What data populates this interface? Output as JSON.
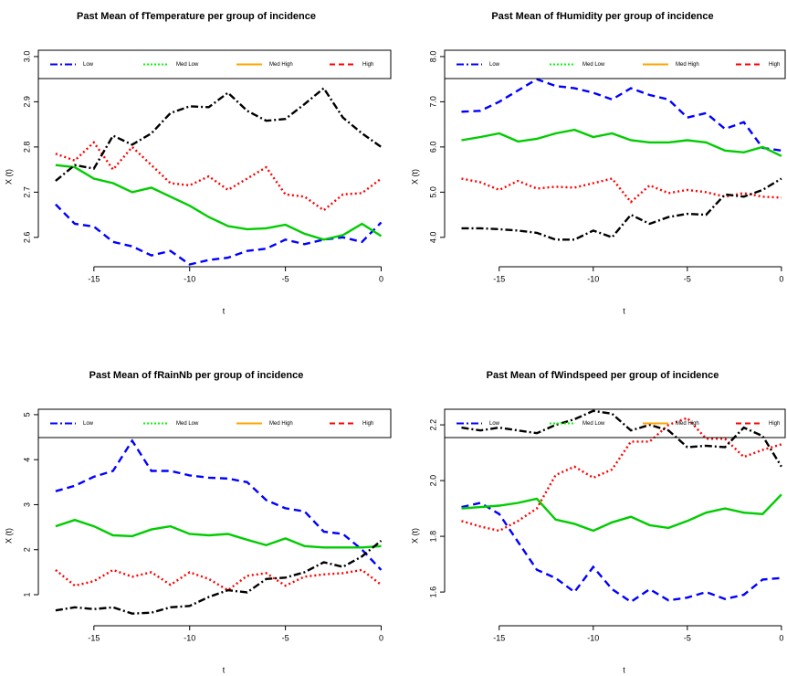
{
  "chart_data": [
    {
      "type": "line",
      "title": "Past Mean of fTemperature per group of incidence",
      "xlabel": "t",
      "ylabel": "X (t)",
      "x": [
        -17,
        -16,
        -15,
        -14,
        -13,
        -12,
        -11,
        -10,
        -9,
        -8,
        -7,
        -6,
        -5,
        -4,
        -3,
        -2,
        -1,
        0
      ],
      "xlim": [
        -17.9,
        0.5
      ],
      "ylim": [
        2.535,
        3.014
      ],
      "xticks": [
        -15,
        -10,
        -5,
        0
      ],
      "yticks": [
        2.6,
        2.7,
        2.8,
        2.9,
        {
          "value": 3,
          "label": "3.0"
        }
      ],
      "series": [
        {
          "name": "Low",
          "color": "#0000ff",
          "dash": "8,5",
          "legend_color": "#0000ff",
          "legend_dash": "8,3,2,3",
          "values": [
            2.673,
            2.63,
            2.624,
            2.59,
            2.58,
            2.56,
            2.57,
            2.54,
            2.55,
            2.555,
            2.57,
            2.575,
            2.595,
            2.585,
            2.595,
            2.6,
            2.59,
            2.633
          ]
        },
        {
          "name": "Med Low",
          "color": "#00cc00",
          "dash": "none",
          "legend_color": "#00ff00",
          "legend_dash": "2,2",
          "values": [
            2.76,
            2.755,
            2.73,
            2.72,
            2.7,
            2.71,
            2.69,
            2.67,
            2.645,
            2.625,
            2.618,
            2.62,
            2.628,
            2.608,
            2.595,
            2.605,
            2.63,
            2.603
          ]
        },
        {
          "name": "Med High",
          "color": "#ff0000",
          "dash": "2,3",
          "legend_color": "#ffa500",
          "legend_dash": "none",
          "values": [
            2.785,
            2.77,
            2.81,
            2.75,
            2.8,
            2.76,
            2.72,
            2.715,
            2.735,
            2.705,
            2.73,
            2.755,
            2.695,
            2.69,
            2.66,
            2.695,
            2.698,
            2.73
          ]
        },
        {
          "name": "High",
          "color": "#000000",
          "dash": "8,3,2,3",
          "legend_color": "#ff0000",
          "legend_dash": "6,4",
          "values": [
            2.725,
            2.76,
            2.752,
            2.825,
            2.805,
            2.83,
            2.875,
            2.89,
            2.888,
            2.92,
            2.88,
            2.858,
            2.862,
            2.895,
            2.93,
            2.865,
            2.83,
            2.8
          ]
        }
      ]
    },
    {
      "type": "line",
      "title": "Past Mean of fHumidity per group of incidence",
      "xlabel": "t",
      "ylabel": "X (t)",
      "x": [
        -17,
        -16,
        -15,
        -14,
        -13,
        -12,
        -11,
        -10,
        -9,
        -8,
        -7,
        -6,
        -5,
        -4,
        -3,
        -2,
        -1,
        0
      ],
      "xlim": [
        -17.9,
        0.2
      ],
      "ylim": [
        3.35,
        8.14
      ],
      "xticks": [
        -15,
        -10,
        -5,
        0
      ],
      "yticks": [
        {
          "value": 4,
          "label": "4.0"
        },
        {
          "value": 5,
          "label": "5.0"
        },
        {
          "value": 6,
          "label": "6.0"
        },
        {
          "value": 7,
          "label": "7.0"
        },
        {
          "value": 8,
          "label": "8.0"
        }
      ],
      "series": [
        {
          "name": "Low",
          "color": "#0000ff",
          "dash": "8,5",
          "legend_color": "#0000ff",
          "legend_dash": "8,3,2,3",
          "values": [
            6.78,
            6.8,
            7.0,
            7.25,
            7.5,
            7.35,
            7.3,
            7.2,
            7.05,
            7.3,
            7.15,
            7.05,
            6.65,
            6.75,
            6.4,
            6.55,
            5.98,
            5.92
          ]
        },
        {
          "name": "Med Low",
          "color": "#00cc00",
          "dash": "none",
          "legend_color": "#00ff00",
          "legend_dash": "2,2",
          "values": [
            6.15,
            6.22,
            6.3,
            6.12,
            6.18,
            6.3,
            6.38,
            6.22,
            6.3,
            6.15,
            6.1,
            6.1,
            6.15,
            6.1,
            5.92,
            5.88,
            6.0,
            5.8
          ]
        },
        {
          "name": "Med High",
          "color": "#ff0000",
          "dash": "2,3",
          "legend_color": "#ffa500",
          "legend_dash": "none",
          "values": [
            5.3,
            5.22,
            5.05,
            5.25,
            5.08,
            5.12,
            5.1,
            5.2,
            5.3,
            4.78,
            5.15,
            4.98,
            5.05,
            5.0,
            4.9,
            4.98,
            4.9,
            4.88
          ]
        },
        {
          "name": "High",
          "color": "#000000",
          "dash": "8,3,2,3",
          "legend_color": "#ff0000",
          "legend_dash": "6,4",
          "values": [
            4.2,
            4.2,
            4.18,
            4.15,
            4.1,
            3.95,
            3.95,
            4.15,
            4.0,
            4.5,
            4.3,
            4.45,
            4.52,
            4.5,
            4.95,
            4.9,
            5.05,
            5.3
          ]
        }
      ]
    },
    {
      "type": "line",
      "title": "Past Mean of fRainNb per group of incidence",
      "xlabel": "t",
      "ylabel": "X (t)",
      "x": [
        -17,
        -16,
        -15,
        -14,
        -13,
        -12,
        -11,
        -10,
        -9,
        -8,
        -7,
        -6,
        -5,
        -4,
        -3,
        -2,
        -1,
        0
      ],
      "xlim": [
        -17.9,
        0.5
      ],
      "ylim": [
        0.31,
        5.12
      ],
      "xticks": [
        -15,
        -10,
        -5,
        0
      ],
      "yticks": [
        1,
        2,
        3,
        4,
        5
      ],
      "series": [
        {
          "name": "Low",
          "color": "#0000ff",
          "dash": "8,5",
          "legend_color": "#0000ff",
          "legend_dash": "8,3,2,3",
          "values": [
            3.3,
            3.42,
            3.62,
            3.75,
            4.42,
            3.75,
            3.75,
            3.65,
            3.6,
            3.58,
            3.5,
            3.1,
            2.92,
            2.85,
            2.4,
            2.35,
            2.0,
            1.55
          ]
        },
        {
          "name": "Med Low",
          "color": "#00cc00",
          "dash": "none",
          "legend_color": "#00ff00",
          "legend_dash": "2,2",
          "values": [
            2.52,
            2.66,
            2.52,
            2.32,
            2.3,
            2.45,
            2.52,
            2.35,
            2.32,
            2.35,
            2.22,
            2.1,
            2.25,
            2.08,
            2.05,
            2.05,
            2.05,
            2.08
          ]
        },
        {
          "name": "Med High",
          "color": "#ff0000",
          "dash": "2,3",
          "legend_color": "#ffa500",
          "legend_dash": "none",
          "values": [
            1.55,
            1.2,
            1.3,
            1.55,
            1.4,
            1.5,
            1.22,
            1.5,
            1.35,
            1.1,
            1.42,
            1.48,
            1.2,
            1.4,
            1.45,
            1.48,
            1.55,
            1.22
          ]
        },
        {
          "name": "High",
          "color": "#000000",
          "dash": "8,3,2,3",
          "legend_color": "#ff0000",
          "legend_dash": "6,4",
          "values": [
            0.65,
            0.72,
            0.68,
            0.72,
            0.58,
            0.6,
            0.72,
            0.75,
            0.95,
            1.1,
            1.05,
            1.35,
            1.38,
            1.5,
            1.72,
            1.62,
            1.85,
            2.2
          ]
        }
      ]
    },
    {
      "type": "line",
      "title": "Past Mean of fWindspeed per group of incidence",
      "xlabel": "t",
      "ylabel": "X (t)",
      "x": [
        -17,
        -16,
        -15,
        -14,
        -13,
        -12,
        -11,
        -10,
        -9,
        -8,
        -7,
        -6,
        -5,
        -4,
        -3,
        -2,
        -1,
        0
      ],
      "xlim": [
        -17.9,
        0.2
      ],
      "ylim": [
        1.479,
        2.256
      ],
      "xticks": [
        -15,
        -10,
        -5,
        0
      ],
      "yticks": [
        1.6,
        1.8,
        {
          "value": 2,
          "label": "2.0"
        },
        2.2
      ],
      "series": [
        {
          "name": "Low",
          "color": "#0000ff",
          "dash": "8,5",
          "legend_color": "#0000ff",
          "legend_dash": "8,3,2,3",
          "values": [
            1.905,
            1.92,
            1.88,
            1.78,
            1.68,
            1.65,
            1.6,
            1.69,
            1.61,
            1.565,
            1.61,
            1.57,
            1.58,
            1.6,
            1.575,
            1.59,
            1.645,
            1.65
          ]
        },
        {
          "name": "Med Low",
          "color": "#00cc00",
          "dash": "none",
          "legend_color": "#00ff00",
          "legend_dash": "2,2",
          "values": [
            1.9,
            1.905,
            1.91,
            1.92,
            1.935,
            1.86,
            1.845,
            1.82,
            1.85,
            1.87,
            1.84,
            1.83,
            1.855,
            1.885,
            1.9,
            1.885,
            1.88,
            1.95
          ]
        },
        {
          "name": "Med High",
          "color": "#ff0000",
          "dash": "2,3",
          "legend_color": "#ffa500",
          "legend_dash": "none",
          "values": [
            1.855,
            1.835,
            1.82,
            1.855,
            1.9,
            2.02,
            2.05,
            2.01,
            2.04,
            2.14,
            2.14,
            2.2,
            2.225,
            2.15,
            2.15,
            2.085,
            2.11,
            2.13
          ]
        },
        {
          "name": "High",
          "color": "#000000",
          "dash": "8,3,2,3",
          "legend_color": "#ff0000",
          "legend_dash": "6,4",
          "values": [
            2.19,
            2.18,
            2.19,
            2.18,
            2.17,
            2.2,
            2.22,
            2.25,
            2.24,
            2.18,
            2.2,
            2.18,
            2.12,
            2.125,
            2.12,
            2.19,
            2.16,
            2.05
          ]
        }
      ]
    }
  ]
}
